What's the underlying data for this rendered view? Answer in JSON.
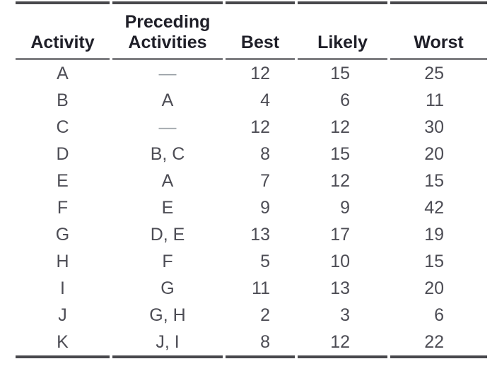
{
  "table": {
    "title": "activity-time-estimates",
    "headers": {
      "activity": "Activity",
      "preceding": "Preceding\nActivities",
      "best": "Best",
      "likely": "Likely",
      "worst": "Worst"
    },
    "no_predecessor_symbol": "—",
    "rows": [
      {
        "activity": "A",
        "preceding": "—",
        "best": "12",
        "likely": "15",
        "worst": "25"
      },
      {
        "activity": "B",
        "preceding": "A",
        "best": "4",
        "likely": "6",
        "worst": "11"
      },
      {
        "activity": "C",
        "preceding": "—",
        "best": "12",
        "likely": "12",
        "worst": "30"
      },
      {
        "activity": "D",
        "preceding": "B, C",
        "best": "8",
        "likely": "15",
        "worst": "20"
      },
      {
        "activity": "E",
        "preceding": "A",
        "best": "7",
        "likely": "12",
        "worst": "15"
      },
      {
        "activity": "F",
        "preceding": "E",
        "best": "9",
        "likely": "9",
        "worst": "42"
      },
      {
        "activity": "G",
        "preceding": "D, E",
        "best": "13",
        "likely": "17",
        "worst": "19"
      },
      {
        "activity": "H",
        "preceding": "F",
        "best": "5",
        "likely": "10",
        "worst": "15"
      },
      {
        "activity": "I",
        "preceding": "G",
        "best": "11",
        "likely": "13",
        "worst": "20"
      },
      {
        "activity": "J",
        "preceding": "G, H",
        "best": "2",
        "likely": "3",
        "worst": "6"
      },
      {
        "activity": "K",
        "preceding": "J, I",
        "best": "8",
        "likely": "12",
        "worst": "22"
      }
    ],
    "colors": {
      "background": "#ffffff",
      "rule_heavy": "#48484c",
      "rule_light": "#7e7e82",
      "header_text": "#1f1f28",
      "body_text": "#4d4d55",
      "dash_text": "#9aa0a6"
    }
  }
}
